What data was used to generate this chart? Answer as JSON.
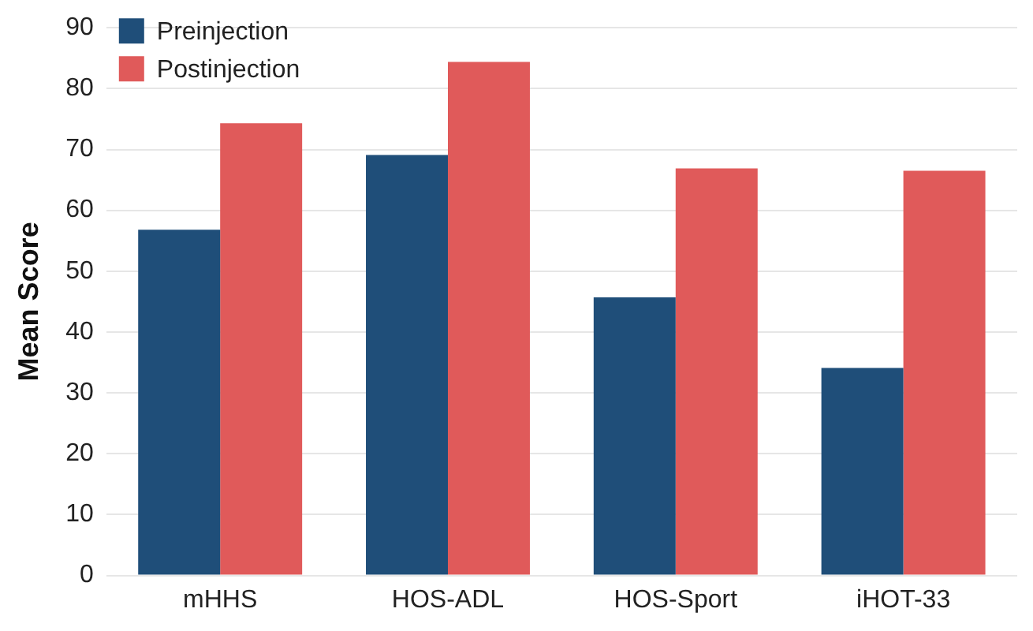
{
  "chart_data": {
    "type": "bar",
    "ylabel": "Mean Score",
    "categories": [
      "mHHS",
      "HOS-ADL",
      "HOS-Sport",
      "iHOT-33"
    ],
    "series": [
      {
        "name": "Preinjection",
        "color": "#1f4e79",
        "values": [
          56.8,
          69.1,
          45.7,
          34.1
        ]
      },
      {
        "name": "Postinjection",
        "color": "#e05a5a",
        "values": [
          74.3,
          84.4,
          66.9,
          66.5
        ]
      }
    ],
    "ylim": [
      0,
      90
    ],
    "yticks": [
      0,
      10,
      20,
      30,
      40,
      50,
      60,
      70,
      80,
      90
    ],
    "grid": "y",
    "legend": "top left"
  }
}
